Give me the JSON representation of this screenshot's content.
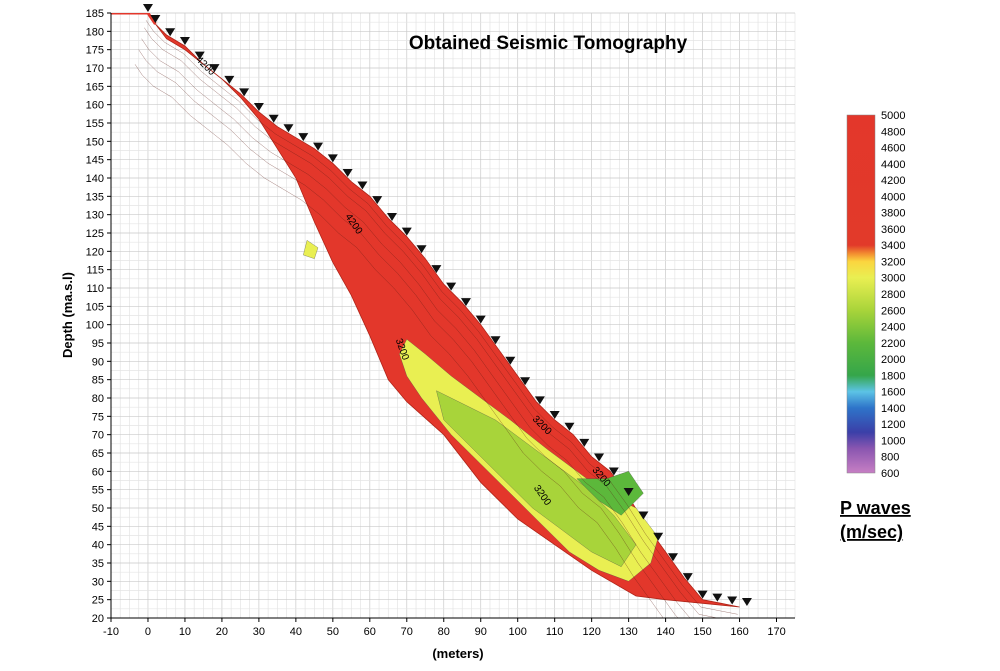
{
  "chart_data": {
    "type": "heatmap",
    "title": "Obtained Seismic Tomography",
    "xlabel": "(meters)",
    "ylabel": "Depth (ma.s.l)",
    "xlim": [
      -10,
      175
    ],
    "ylim": [
      20,
      185
    ],
    "x_ticks": [
      -10,
      0,
      10,
      20,
      30,
      40,
      50,
      60,
      70,
      80,
      90,
      100,
      110,
      120,
      130,
      140,
      150,
      160,
      170
    ],
    "y_ticks": [
      20,
      25,
      30,
      35,
      40,
      45,
      50,
      55,
      60,
      65,
      70,
      75,
      80,
      85,
      90,
      95,
      100,
      105,
      110,
      115,
      120,
      125,
      130,
      135,
      140,
      145,
      150,
      155,
      160,
      165,
      170,
      175,
      180,
      185
    ],
    "grid": true,
    "colorbar": {
      "title_line1": "P waves",
      "title_line2": "(m/sec)",
      "ticks": [
        5000,
        4800,
        4600,
        4400,
        4200,
        4000,
        3800,
        3600,
        3400,
        3200,
        3000,
        2800,
        2600,
        2400,
        2200,
        2000,
        1800,
        1600,
        1400,
        1200,
        1000,
        800,
        600
      ],
      "stops": [
        {
          "value": 600,
          "color": "#c77fc4"
        },
        {
          "value": 900,
          "color": "#8a56b0"
        },
        {
          "value": 1100,
          "color": "#3b3fa8"
        },
        {
          "value": 1400,
          "color": "#2e74c9"
        },
        {
          "value": 1600,
          "color": "#5cc3e6"
        },
        {
          "value": 1800,
          "color": "#35a64a"
        },
        {
          "value": 2200,
          "color": "#5cb83b"
        },
        {
          "value": 2600,
          "color": "#a8d43a"
        },
        {
          "value": 3000,
          "color": "#e9ef52"
        },
        {
          "value": 3200,
          "color": "#fbd53f"
        },
        {
          "value": 3300,
          "color": "#f28a30"
        },
        {
          "value": 3400,
          "color": "#e23a2a"
        },
        {
          "value": 5000,
          "color": "#e3372b"
        }
      ]
    },
    "surface_profile": [
      [
        -10,
        185
      ],
      [
        0,
        185
      ],
      [
        2,
        182
      ],
      [
        5,
        179
      ],
      [
        10,
        176
      ],
      [
        15,
        171
      ],
      [
        20,
        167
      ],
      [
        25,
        163
      ],
      [
        30,
        158
      ],
      [
        35,
        154
      ],
      [
        40,
        151
      ],
      [
        45,
        148
      ],
      [
        50,
        144
      ],
      [
        55,
        139
      ],
      [
        60,
        135
      ],
      [
        65,
        129
      ],
      [
        70,
        124
      ],
      [
        75,
        118
      ],
      [
        80,
        111
      ],
      [
        85,
        106
      ],
      [
        90,
        100
      ],
      [
        95,
        93
      ],
      [
        100,
        86
      ],
      [
        105,
        79
      ],
      [
        110,
        74
      ],
      [
        115,
        70
      ],
      [
        120,
        64
      ],
      [
        125,
        60
      ],
      [
        130,
        53
      ],
      [
        135,
        45
      ],
      [
        140,
        38
      ],
      [
        145,
        31
      ],
      [
        150,
        25
      ],
      [
        155,
        24
      ],
      [
        160,
        23
      ]
    ],
    "model_bottom": [
      [
        160,
        23
      ],
      [
        150,
        24
      ],
      [
        140,
        25
      ],
      [
        132,
        26
      ],
      [
        120,
        33
      ],
      [
        110,
        40
      ],
      [
        100,
        47
      ],
      [
        90,
        57
      ],
      [
        80,
        70
      ],
      [
        70,
        79
      ],
      [
        65,
        85
      ],
      [
        60,
        97
      ],
      [
        55,
        108
      ],
      [
        50,
        117
      ],
      [
        45,
        128
      ],
      [
        40,
        140
      ],
      [
        35,
        148
      ],
      [
        30,
        156
      ],
      [
        25,
        162
      ],
      [
        20,
        167
      ],
      [
        15,
        171
      ],
      [
        10,
        175
      ],
      [
        5,
        178
      ],
      [
        2,
        182
      ],
      [
        0,
        185
      ]
    ],
    "geophones_x": [
      0,
      2,
      6,
      10,
      14,
      18,
      22,
      26,
      30,
      34,
      38,
      42,
      46,
      50,
      54,
      58,
      62,
      66,
      70,
      74,
      78,
      82,
      86,
      90,
      94,
      98,
      102,
      106,
      110,
      114,
      118,
      122,
      126,
      130,
      134,
      138,
      142,
      146,
      150,
      154,
      158,
      162
    ],
    "low_velocity_zones": [
      {
        "value": 3000,
        "points": [
          [
            70,
            96
          ],
          [
            75,
            92
          ],
          [
            82,
            86
          ],
          [
            90,
            80
          ],
          [
            98,
            74
          ],
          [
            108,
            66
          ],
          [
            116,
            60
          ],
          [
            124,
            54
          ],
          [
            132,
            50
          ],
          [
            138,
            42
          ],
          [
            136,
            35
          ],
          [
            130,
            30
          ],
          [
            122,
            33
          ],
          [
            114,
            38
          ],
          [
            106,
            46
          ],
          [
            98,
            54
          ],
          [
            90,
            62
          ],
          [
            82,
            70
          ],
          [
            74,
            80
          ],
          [
            70,
            86
          ],
          [
            68,
            92
          ]
        ]
      },
      {
        "value": 2600,
        "points": [
          [
            78,
            82
          ],
          [
            86,
            78
          ],
          [
            94,
            74
          ],
          [
            102,
            68
          ],
          [
            110,
            62
          ],
          [
            118,
            56
          ],
          [
            126,
            48
          ],
          [
            132,
            40
          ],
          [
            128,
            34
          ],
          [
            120,
            38
          ],
          [
            112,
            44
          ],
          [
            104,
            50
          ],
          [
            96,
            58
          ],
          [
            88,
            66
          ],
          [
            80,
            74
          ]
        ]
      },
      {
        "value": 2200,
        "points": [
          [
            116,
            58
          ],
          [
            122,
            52
          ],
          [
            128,
            48
          ],
          [
            134,
            54
          ],
          [
            130,
            60
          ],
          [
            124,
            58
          ]
        ]
      },
      {
        "value": 3100,
        "points": [
          [
            43,
            123
          ],
          [
            46,
            121
          ],
          [
            45,
            118
          ],
          [
            42,
            119
          ]
        ]
      }
    ],
    "contour_labels": [
      {
        "x": 15,
        "y": 170,
        "text": "4200",
        "angle": 45
      },
      {
        "x": 55,
        "y": 127,
        "text": "4200",
        "angle": 55
      },
      {
        "x": 68,
        "y": 93,
        "text": "3200",
        "angle": 70
      },
      {
        "x": 106,
        "y": 72,
        "text": "3200",
        "angle": 45
      },
      {
        "x": 106,
        "y": 53,
        "text": "3200",
        "angle": 55
      },
      {
        "x": 122,
        "y": 58,
        "text": "3200",
        "angle": 50
      }
    ]
  }
}
